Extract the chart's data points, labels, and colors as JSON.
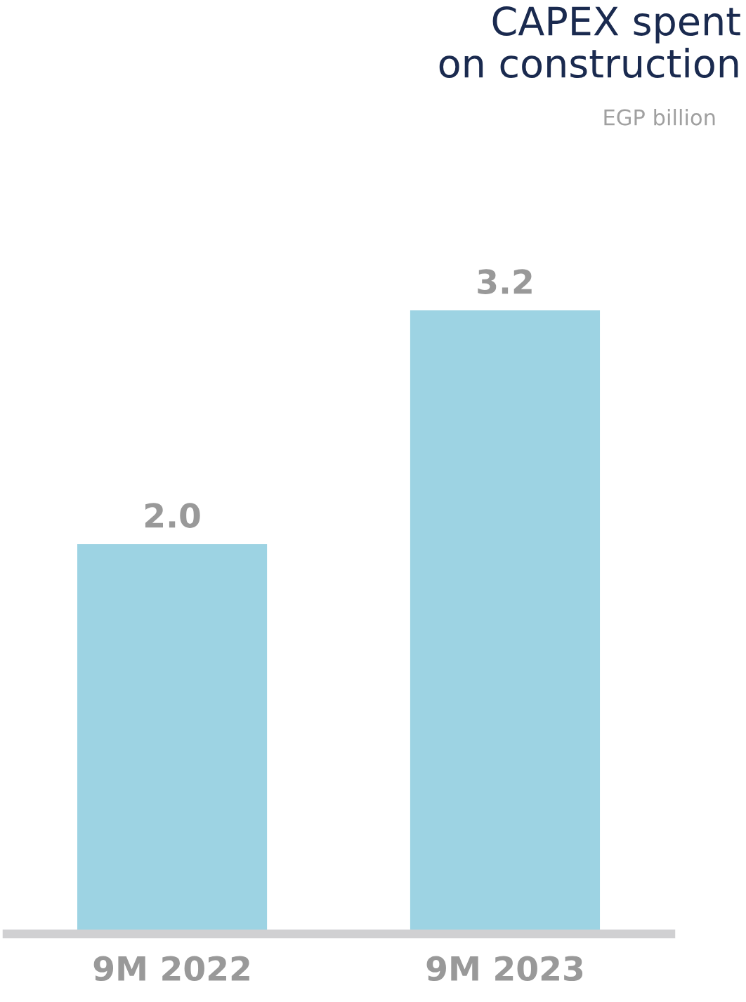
{
  "chart_data": {
    "type": "bar",
    "title": "CAPEX spent\non construction",
    "subtitle": "EGP billion",
    "categories": [
      "9M 2022",
      "9M 2023"
    ],
    "values": [
      2.0,
      3.2
    ],
    "value_labels": [
      "2.0",
      "3.2"
    ],
    "color": "#9dd3e3",
    "grid": false,
    "legend": false
  }
}
